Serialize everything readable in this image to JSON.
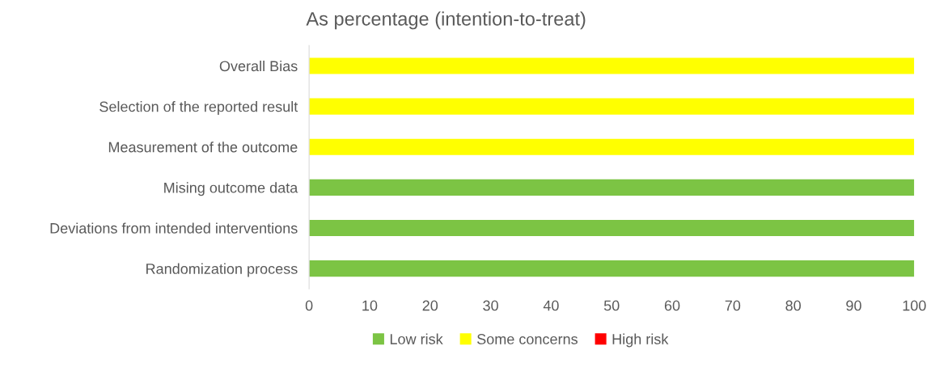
{
  "chart_data": {
    "type": "bar",
    "orientation": "horizontal",
    "stacked": true,
    "title": "As percentage (intention-to-treat)",
    "categories": [
      "Overall Bias",
      "Selection of the reported result",
      "Measurement of the outcome",
      "Mising outcome data",
      "Deviations from intended interventions",
      "Randomization process"
    ],
    "series": [
      {
        "name": "Low risk",
        "color": "#7cc444",
        "values": [
          0,
          0,
          0,
          100,
          100,
          100
        ]
      },
      {
        "name": "Some concerns",
        "color": "#ffff00",
        "values": [
          100,
          100,
          100,
          0,
          0,
          0
        ]
      },
      {
        "name": "High risk",
        "color": "#ff0000",
        "values": [
          0,
          0,
          0,
          0,
          0,
          0
        ]
      }
    ],
    "xlim": [
      0,
      100
    ],
    "xticks": [
      0,
      10,
      20,
      30,
      40,
      50,
      60,
      70,
      80,
      90,
      100
    ],
    "grid": false,
    "legend": "bottom"
  }
}
